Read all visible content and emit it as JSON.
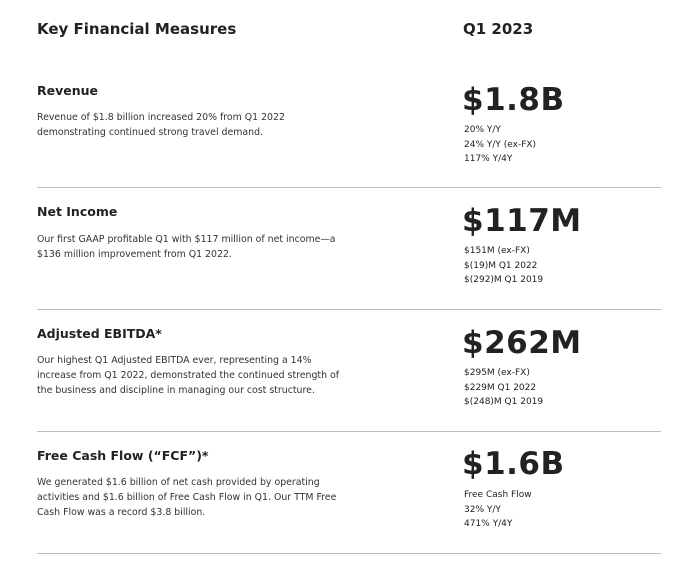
{
  "header": {
    "title": "Key Financial Measures",
    "period": "Q1 2023"
  },
  "sections": [
    {
      "title": "Revenue",
      "description": "Revenue of $1.8 billion increased 20% from Q1 2022 demonstrating continued strong travel demand.",
      "value": "$1.8B",
      "details": [
        "20% Y/Y",
        "24% Y/Y (ex-FX)",
        "117% Y/4Y"
      ]
    },
    {
      "title": "Net Income",
      "description": "Our first GAAP profitable Q1 with $117 million of net income—a $136 million improvement from Q1 2022.",
      "value": "$117M",
      "details": [
        "$151M (ex-FX)",
        "$(19)M Q1 2022",
        "$(292)M Q1 2019"
      ]
    },
    {
      "title": "Adjusted EBITDA*",
      "description": "Our highest Q1 Adjusted EBITDA ever, representing a 14% increase from Q1 2022, demonstrated the continued strength of the business and discipline in managing our cost structure.",
      "value": "$262M",
      "details": [
        "$295M (ex-FX)",
        "$229M Q1 2022",
        "$(248)M Q1 2019"
      ]
    },
    {
      "title": "Free Cash Flow (“FCF”)*",
      "description": "We generated $1.6 billion of net cash provided by operating activities and $1.6 billion of Free Cash Flow in Q1. Our TTM Free Cash Flow was a record $3.8 billion.",
      "value": "$1.6B",
      "details": [
        "Free Cash Flow",
        "32% Y/Y",
        "471% Y/4Y"
      ]
    }
  ]
}
